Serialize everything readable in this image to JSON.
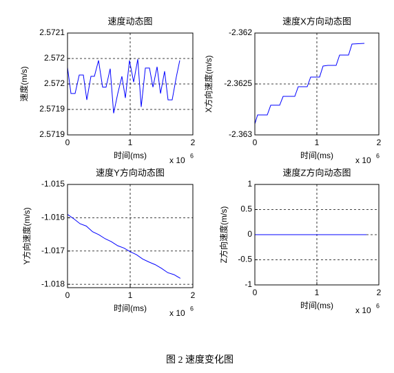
{
  "chart_data": [
    {
      "type": "line",
      "title": "速度动态图",
      "xlabel": "时间(ms)",
      "ylabel": "速度(m/s)",
      "x_multiplier": "x 10",
      "x_multiplier_power": "6",
      "x": [
        0,
        55000,
        121000,
        187000,
        253000,
        308000,
        374000,
        429000,
        495000,
        560000,
        615000,
        681000,
        736000,
        802000,
        868000,
        923000,
        989000,
        1055000,
        1121000,
        1176000,
        1242000,
        1308000,
        1363000,
        1429000,
        1484000,
        1549000,
        1604000,
        1670000,
        1736000,
        1791000
      ],
      "series": [
        {
          "color": "#0000ff",
          "values": [
            2.572006,
            2.571965,
            2.571965,
            2.571994,
            2.571994,
            2.571955,
            2.571992,
            2.571992,
            2.572017,
            2.571975,
            2.571975,
            2.572004,
            2.571934,
            2.571965,
            2.571992,
            2.571958,
            2.572017,
            2.571983,
            2.572019,
            2.571944,
            2.572005,
            2.572005,
            2.571975,
            2.572007,
            2.571965,
            2.572,
            2.571955,
            2.571955,
            2.571991,
            2.572017
          ]
        }
      ],
      "xlim": [
        0,
        2000000
      ],
      "xticks": [
        0,
        {
          "value": 1000000,
          "label": "1"
        },
        {
          "value": 2000000,
          "label": "2"
        }
      ],
      "ylim": [
        2.5719,
        2.57206
      ],
      "yticks": [
        {
          "value": 2.5719,
          "label": "2.5719"
        },
        {
          "value": 2.57194,
          "label": "2.5719"
        },
        {
          "value": 2.57198,
          "label": "2.572"
        },
        {
          "value": 2.57202,
          "label": "2.572"
        },
        {
          "value": 2.57206,
          "label": "2.5721"
        }
      ],
      "grid": true
    },
    {
      "type": "line",
      "title": "速度X方向动态图",
      "xlabel": "时间(ms)",
      "ylabel": "X方向速度(m/s)",
      "x_multiplier": "x 10",
      "x_multiplier_power": "6",
      "x": [
        0,
        44000,
        200000,
        256000,
        400000,
        456000,
        644000,
        700000,
        844000,
        900000,
        1044000,
        1100000,
        1178000,
        1311000,
        1367000,
        1511000,
        1567000,
        1767000
      ],
      "series": [
        {
          "color": "#0000ff",
          "values": [
            -2.362892,
            -2.362804,
            -2.362804,
            -2.362709,
            -2.362709,
            -2.362622,
            -2.362622,
            -2.362527,
            -2.362527,
            -2.362432,
            -2.362432,
            -2.362324,
            -2.362318,
            -2.362318,
            -2.362216,
            -2.362216,
            -2.362108,
            -2.362101
          ]
        }
      ],
      "xlim": [
        0,
        2000000
      ],
      "xticks": [
        0,
        {
          "value": 1000000,
          "label": "1"
        },
        {
          "value": 2000000,
          "label": "2"
        }
      ],
      "ylim": [
        -2.363,
        -2.362
      ],
      "yticks": [
        -2.363,
        -2.3625,
        -2.362
      ],
      "grid": true
    },
    {
      "type": "line",
      "title": "速度Y方向动态图",
      "xlabel": "时间(ms)",
      "ylabel": "Y方向速度(m/s)",
      "x_multiplier": "x 10",
      "x_multiplier_power": "6",
      "x": [
        0,
        100000,
        200000,
        300000,
        400000,
        500000,
        600000,
        700000,
        800000,
        900000,
        1000000,
        1100000,
        1200000,
        1300000,
        1400000,
        1500000,
        1600000,
        1700000,
        1800000
      ],
      "series": [
        {
          "color": "#0000ff",
          "values": [
            -1.0159,
            -1.01603,
            -1.01618,
            -1.01625,
            -1.01642,
            -1.01651,
            -1.01663,
            -1.01672,
            -1.01684,
            -1.01691,
            -1.01702,
            -1.01711,
            -1.01724,
            -1.01733,
            -1.01741,
            -1.01752,
            -1.01765,
            -1.01771,
            -1.01782
          ]
        }
      ],
      "xlim": [
        0,
        2000000
      ],
      "xticks": [
        0,
        {
          "value": 1000000,
          "label": "1"
        },
        {
          "value": 2000000,
          "label": "2"
        }
      ],
      "ylim": [
        -1.0181,
        -1.015
      ],
      "yticks": [
        -1.018,
        -1.017,
        -1.016,
        -1.015
      ],
      "grid": true
    },
    {
      "type": "line",
      "title": "速度Z方向动态图",
      "xlabel": "时间(ms)",
      "ylabel": "Z方向速度(m/s)",
      "x_multiplier": "x 10",
      "x_multiplier_power": "6",
      "x": [
        0,
        1800000
      ],
      "series": [
        {
          "color": "#0000ff",
          "values": [
            0,
            0
          ]
        }
      ],
      "xlim": [
        0,
        2000000
      ],
      "xticks": [
        0,
        {
          "value": 1000000,
          "label": "1"
        },
        {
          "value": 2000000,
          "label": "2"
        }
      ],
      "ylim": [
        -1,
        1
      ],
      "yticks": [
        -1,
        -0.5,
        0,
        0.5,
        1
      ],
      "grid": true
    }
  ],
  "caption": "图 2  速度变化图"
}
